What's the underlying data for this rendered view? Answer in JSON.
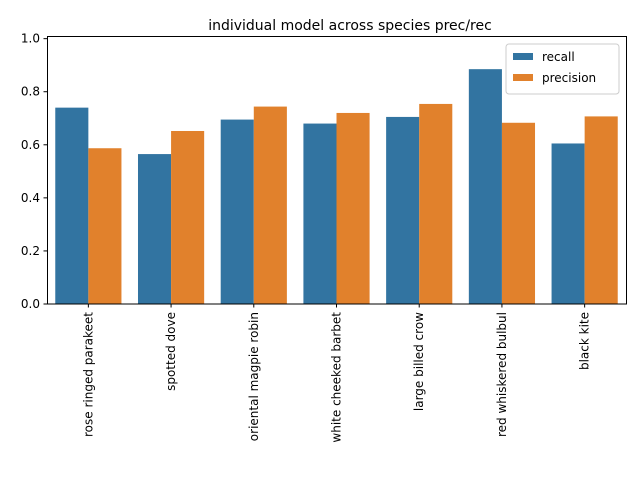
{
  "chart_data": {
    "type": "bar",
    "title": "individual model across species prec/rec",
    "xlabel": "",
    "ylabel": "",
    "ylim": [
      0,
      1.01
    ],
    "yticks": [
      "0.0",
      "0.2",
      "0.4",
      "0.6",
      "0.8",
      "1.0"
    ],
    "categories": [
      "rose ringed parakeet",
      "spotted dove",
      "oriental magpie robin",
      "white cheeked barbet",
      "large billed crow",
      "red whiskered bulbul",
      "black kite"
    ],
    "series": [
      {
        "name": "recall",
        "color": "#3274a1",
        "values": [
          0.74,
          0.565,
          0.695,
          0.68,
          0.705,
          0.885,
          0.605
        ]
      },
      {
        "name": "precision",
        "color": "#e1812c",
        "values": [
          0.587,
          0.652,
          0.744,
          0.72,
          0.754,
          0.683,
          0.707
        ]
      }
    ],
    "legend": "top-right",
    "grid": false
  }
}
